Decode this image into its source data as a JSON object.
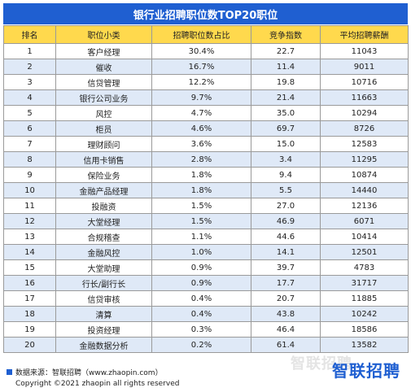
{
  "title": "银行业招聘职位数TOP20职位",
  "columns": [
    "排名",
    "职位小类",
    "招聘职位数占比",
    "竞争指数",
    "平均招聘薪酬"
  ],
  "rows": [
    {
      "rank": "1",
      "position": "客户经理",
      "share": "30.4%",
      "competition": "22.7",
      "salary": "11043"
    },
    {
      "rank": "2",
      "position": "催收",
      "share": "16.7%",
      "competition": "11.4",
      "salary": "9011"
    },
    {
      "rank": "3",
      "position": "信贷管理",
      "share": "12.2%",
      "competition": "19.8",
      "salary": "10716"
    },
    {
      "rank": "4",
      "position": "银行公司业务",
      "share": "9.7%",
      "competition": "21.4",
      "salary": "11663"
    },
    {
      "rank": "5",
      "position": "风控",
      "share": "4.7%",
      "competition": "35.0",
      "salary": "10294"
    },
    {
      "rank": "6",
      "position": "柜员",
      "share": "4.6%",
      "competition": "69.7",
      "salary": "8726"
    },
    {
      "rank": "7",
      "position": "理财顾问",
      "share": "3.6%",
      "competition": "15.0",
      "salary": "12583"
    },
    {
      "rank": "8",
      "position": "信用卡销售",
      "share": "2.8%",
      "competition": "3.4",
      "salary": "11295"
    },
    {
      "rank": "9",
      "position": "保险业务",
      "share": "1.8%",
      "competition": "9.4",
      "salary": "10874"
    },
    {
      "rank": "10",
      "position": "金融产品经理",
      "share": "1.8%",
      "competition": "5.5",
      "salary": "14440"
    },
    {
      "rank": "11",
      "position": "投融资",
      "share": "1.5%",
      "competition": "27.0",
      "salary": "12136"
    },
    {
      "rank": "12",
      "position": "大堂经理",
      "share": "1.5%",
      "competition": "46.9",
      "salary": "6071"
    },
    {
      "rank": "13",
      "position": "合规稽查",
      "share": "1.1%",
      "competition": "44.6",
      "salary": "10414"
    },
    {
      "rank": "14",
      "position": "金融风控",
      "share": "1.0%",
      "competition": "14.1",
      "salary": "12501"
    },
    {
      "rank": "15",
      "position": "大堂助理",
      "share": "0.9%",
      "competition": "39.7",
      "salary": "4783"
    },
    {
      "rank": "16",
      "position": "行长/副行长",
      "share": "0.9%",
      "competition": "17.7",
      "salary": "31717"
    },
    {
      "rank": "17",
      "position": "信贷审核",
      "share": "0.4%",
      "competition": "20.7",
      "salary": "11885"
    },
    {
      "rank": "18",
      "position": "清算",
      "share": "0.4%",
      "competition": "43.8",
      "salary": "10242"
    },
    {
      "rank": "19",
      "position": "投资经理",
      "share": "0.3%",
      "competition": "46.4",
      "salary": "18586"
    },
    {
      "rank": "20",
      "position": "金融数据分析",
      "share": "0.2%",
      "competition": "61.4",
      "salary": "13582"
    }
  ],
  "footer": {
    "source": "数据来源：智联招聘（www.zhaopin.com）",
    "copyright": "Copyright ©2021 zhaopin all rights reserved",
    "watermark": "智联招聘",
    "brand": "智联招聘"
  },
  "colors": {
    "title_bg": "#1f5fd1",
    "header_bg": "#ffd94d",
    "row_alt_bg": "#dfe9f7",
    "brand": "#1f5fd1"
  }
}
